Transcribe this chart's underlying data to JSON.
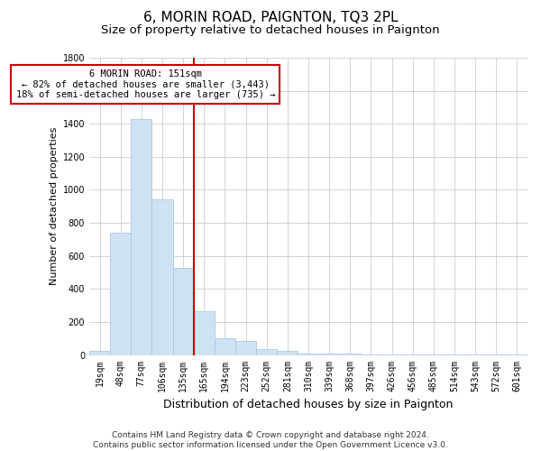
{
  "title": "6, MORIN ROAD, PAIGNTON, TQ3 2PL",
  "subtitle": "Size of property relative to detached houses in Paignton",
  "xlabel": "Distribution of detached houses by size in Paignton",
  "ylabel": "Number of detached properties",
  "categories": [
    "19sqm",
    "48sqm",
    "77sqm",
    "106sqm",
    "135sqm",
    "165sqm",
    "194sqm",
    "223sqm",
    "252sqm",
    "281sqm",
    "310sqm",
    "339sqm",
    "368sqm",
    "397sqm",
    "426sqm",
    "456sqm",
    "485sqm",
    "514sqm",
    "543sqm",
    "572sqm",
    "601sqm"
  ],
  "values": [
    25,
    740,
    1430,
    940,
    530,
    265,
    100,
    85,
    38,
    25,
    10,
    10,
    10,
    5,
    5,
    5,
    5,
    5,
    5,
    5,
    5
  ],
  "bar_color": "#cfe2f3",
  "bar_edge_color": "#a8c8e8",
  "vline_color": "#cc0000",
  "vline_x_index": 5,
  "annotation_text": "6 MORIN ROAD: 151sqm\n← 82% of detached houses are smaller (3,443)\n18% of semi-detached houses are larger (735) →",
  "annotation_box_color": "#ffffff",
  "annotation_box_edge_color": "#cc0000",
  "ylim": [
    0,
    1800
  ],
  "yticks": [
    0,
    200,
    400,
    600,
    800,
    1000,
    1200,
    1400,
    1600,
    1800
  ],
  "footnote": "Contains HM Land Registry data © Crown copyright and database right 2024.\nContains public sector information licensed under the Open Government Licence v3.0.",
  "title_fontsize": 11,
  "subtitle_fontsize": 9.5,
  "xlabel_fontsize": 9,
  "ylabel_fontsize": 8,
  "tick_fontsize": 7,
  "annotation_fontsize": 7.5,
  "footnote_fontsize": 6.5,
  "background_color": "#ffffff",
  "grid_color": "#cccccc"
}
